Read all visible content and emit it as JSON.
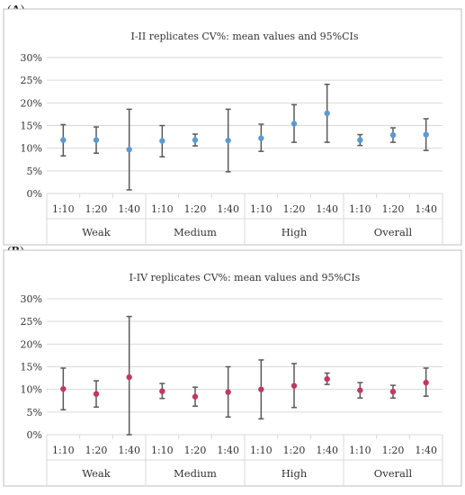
{
  "panels": [
    {
      "label": "A"
    },
    {
      "label": "B"
    }
  ],
  "chart_data": [
    {
      "type": "scatter",
      "title": "I-II replicates CV%: mean values and 95%CIs",
      "categories": [
        "1:10",
        "1:20",
        "1:40",
        "1:10",
        "1:20",
        "1:40",
        "1:10",
        "1:20",
        "1:40",
        "1:10",
        "1:20",
        "1:40"
      ],
      "groups": [
        "Weak",
        "Medium",
        "High",
        "Overall"
      ],
      "ylim": [
        0,
        30
      ],
      "yticks": [
        "0%",
        "5%",
        "10%",
        "15%",
        "20%",
        "25%",
        "30%"
      ],
      "grid": true,
      "marker_color": "#5b9bd5",
      "series": [
        {
          "values": [
            11.8,
            11.8,
            9.7,
            11.6,
            11.8,
            11.7,
            12.2,
            15.4,
            17.7,
            11.8,
            12.9,
            13.0
          ],
          "ci_low": [
            8.3,
            8.9,
            0.8,
            8.1,
            10.5,
            4.8,
            9.3,
            11.3,
            11.3,
            10.6,
            11.3,
            9.5
          ],
          "ci_high": [
            15.2,
            14.7,
            18.6,
            15.0,
            13.1,
            18.6,
            15.3,
            19.6,
            24.1,
            13.0,
            14.5,
            16.5
          ]
        }
      ]
    },
    {
      "type": "scatter",
      "title": "I-IV replicates CV%: mean values and 95%CIs",
      "categories": [
        "1:10",
        "1:20",
        "1:40",
        "1:10",
        "1:20",
        "1:40",
        "1:10",
        "1:20",
        "1:40",
        "1:10",
        "1:20",
        "1:40"
      ],
      "groups": [
        "Weak",
        "Medium",
        "High",
        "Overall"
      ],
      "ylim": [
        0,
        30
      ],
      "yticks": [
        "0%",
        "5%",
        "10%",
        "15%",
        "20%",
        "25%",
        "30%"
      ],
      "grid": true,
      "marker_color": "#c0395f",
      "series": [
        {
          "values": [
            10.1,
            9.0,
            12.7,
            9.6,
            8.4,
            9.4,
            10.0,
            10.8,
            12.3,
            9.8,
            9.5,
            11.5
          ],
          "ci_low": [
            5.5,
            6.1,
            0.0,
            8.0,
            6.3,
            3.9,
            3.5,
            6.0,
            11.1,
            8.1,
            8.1,
            8.5
          ],
          "ci_high": [
            14.7,
            11.9,
            26.1,
            11.3,
            10.5,
            15.0,
            16.5,
            15.7,
            13.6,
            11.5,
            10.9,
            14.7
          ]
        }
      ]
    }
  ]
}
